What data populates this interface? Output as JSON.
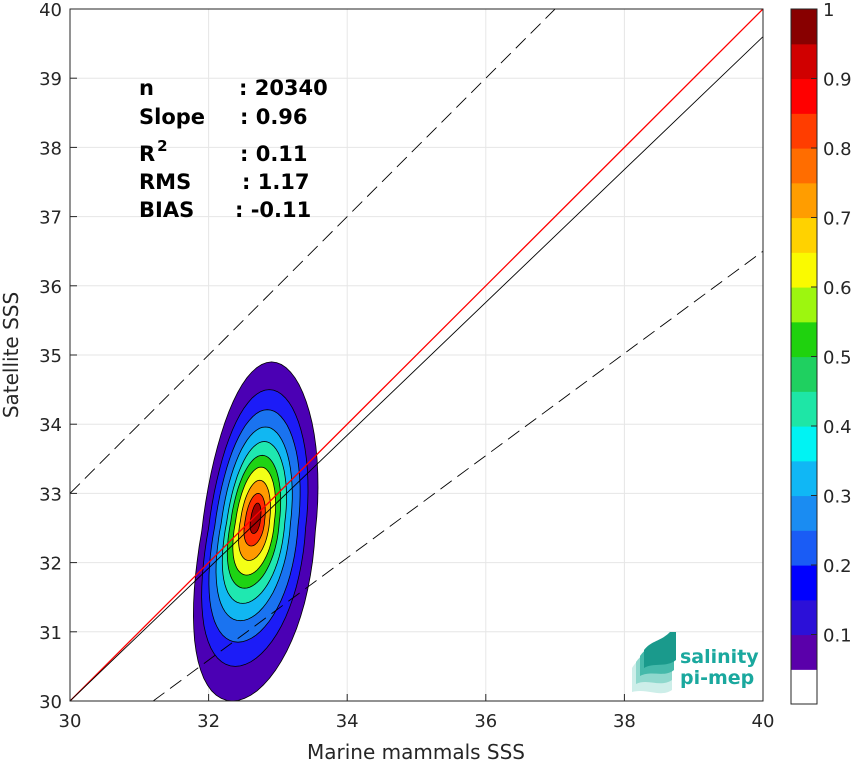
{
  "chart_data": {
    "type": "heatmap",
    "title": "",
    "xlabel": "Marine mammals SSS",
    "ylabel": "Satellite SSS",
    "xlim": [
      30,
      40
    ],
    "ylim": [
      30,
      40
    ],
    "x_ticks": [
      "30",
      "32",
      "34",
      "36",
      "38",
      "40"
    ],
    "y_ticks": [
      "30",
      "31",
      "32",
      "33",
      "34",
      "35",
      "36",
      "37",
      "38",
      "39",
      "40"
    ],
    "grid": true,
    "stats": [
      {
        "label": "n",
        "value": ": 20340"
      },
      {
        "label": "Slope",
        "value": ": 0.96"
      },
      {
        "label": "R",
        "sup": "2",
        "value": ": 0.11"
      },
      {
        "label": "RMS",
        "value": ": 1.17"
      },
      {
        "label": "BIAS",
        "value": ": -0.11"
      }
    ],
    "lines": [
      {
        "kind": "identity",
        "color": "#ff0000",
        "points": [
          [
            30,
            30
          ],
          [
            40,
            40
          ]
        ]
      },
      {
        "kind": "regression",
        "color": "#000000",
        "points": [
          [
            30,
            30
          ],
          [
            40,
            39.6
          ]
        ]
      },
      {
        "kind": "upper-bound",
        "color": "#000000",
        "dashed": true,
        "points": [
          [
            30,
            33
          ],
          [
            37.3,
            40.3
          ]
        ]
      },
      {
        "kind": "lower-bound",
        "color": "#000000",
        "dashed": true,
        "points": [
          [
            31.2,
            30
          ],
          [
            40,
            36.5
          ]
        ]
      }
    ],
    "density_peak": {
      "x": 32.7,
      "y": 32.6
    },
    "contours": [
      {
        "level": 0.05,
        "color": "#4b00b4",
        "cx": 32.72,
        "cy": 32.45,
        "rx": 0.82,
        "ry": 2.45,
        "tilt": 0.33,
        "skew": -0.38
      },
      {
        "level": 0.15,
        "color": "#1c1cf7",
        "cx": 32.7,
        "cy": 32.5,
        "rx": 0.7,
        "ry": 2.0,
        "tilt": 0.35,
        "skew": -0.33
      },
      {
        "level": 0.25,
        "color": "#1a73f0",
        "cx": 32.69,
        "cy": 32.53,
        "rx": 0.6,
        "ry": 1.68,
        "tilt": 0.36,
        "skew": -0.3
      },
      {
        "level": 0.35,
        "color": "#11b7f2",
        "cx": 32.68,
        "cy": 32.56,
        "rx": 0.5,
        "ry": 1.4,
        "tilt": 0.37,
        "skew": -0.27
      },
      {
        "level": 0.45,
        "color": "#1fe8b0",
        "cx": 32.68,
        "cy": 32.58,
        "rx": 0.42,
        "ry": 1.17,
        "tilt": 0.38,
        "skew": -0.25
      },
      {
        "level": 0.55,
        "color": "#1ed314",
        "cx": 32.67,
        "cy": 32.59,
        "rx": 0.35,
        "ry": 0.96,
        "tilt": 0.38,
        "skew": -0.22
      },
      {
        "level": 0.65,
        "color": "#f3ff16",
        "cx": 32.67,
        "cy": 32.6,
        "rx": 0.28,
        "ry": 0.78,
        "tilt": 0.38,
        "skew": -0.2
      },
      {
        "level": 0.75,
        "color": "#ff9a00",
        "cx": 32.67,
        "cy": 32.61,
        "rx": 0.21,
        "ry": 0.58,
        "tilt": 0.38,
        "skew": -0.16
      },
      {
        "level": 0.85,
        "color": "#ff2c00",
        "cx": 32.67,
        "cy": 32.62,
        "rx": 0.14,
        "ry": 0.38,
        "tilt": 0.38,
        "skew": -0.12
      },
      {
        "level": 0.95,
        "color": "#a70000",
        "cx": 32.68,
        "cy": 32.64,
        "rx": 0.07,
        "ry": 0.22,
        "tilt": 0.38,
        "skew": -0.08
      }
    ],
    "colorbar": {
      "lim": [
        0,
        1
      ],
      "ticks": [
        "0.1",
        "0.2",
        "0.3",
        "0.4",
        "0.5",
        "0.6",
        "0.7",
        "0.8",
        "0.9",
        "1"
      ],
      "colors": [
        "#ffffff",
        "#5a00aa",
        "#2c10d8",
        "#0000ff",
        "#1a5cf5",
        "#1a8cf2",
        "#10b7f5",
        "#00f3f3",
        "#1ee6a6",
        "#1fd060",
        "#1fd20e",
        "#9df60f",
        "#fafa00",
        "#ffd200",
        "#ff9d00",
        "#ff6d00",
        "#ff3d00",
        "#ff0000",
        "#d00000",
        "#880000"
      ]
    }
  },
  "logo": {
    "line1": "salinity",
    "line2": "pi-mep",
    "color": "#1aa89e"
  }
}
